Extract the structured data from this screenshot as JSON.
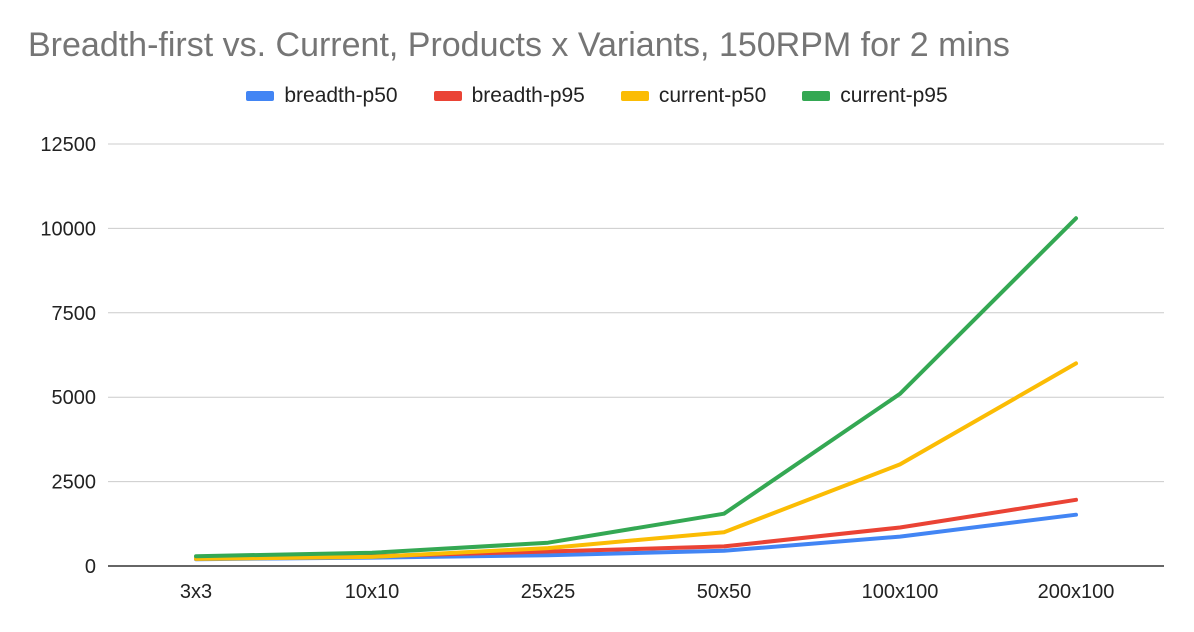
{
  "chart_data": {
    "type": "line",
    "title": "Breadth-first vs. Current, Products x Variants, 150RPM for 2 mins",
    "categories": [
      "3x3",
      "10x10",
      "25x25",
      "50x50",
      "100x100",
      "200x100"
    ],
    "yticks": [
      "0",
      "2500",
      "5000",
      "7500",
      "10000",
      "12500"
    ],
    "ylim": [
      0,
      12500
    ],
    "grid": true,
    "legend_position": "top",
    "series": [
      {
        "name": "breadth-p50",
        "color": "#4285f4",
        "values": [
          200,
          250,
          320,
          450,
          870,
          1520
        ]
      },
      {
        "name": "breadth-p95",
        "color": "#ea4335",
        "values": [
          220,
          290,
          430,
          580,
          1140,
          1960
        ]
      },
      {
        "name": "current-p50",
        "color": "#fbbc04",
        "values": [
          210,
          270,
          530,
          1000,
          3010,
          6000
        ]
      },
      {
        "name": "current-p95",
        "color": "#34a853",
        "values": [
          290,
          390,
          690,
          1550,
          5100,
          10300
        ]
      }
    ]
  }
}
